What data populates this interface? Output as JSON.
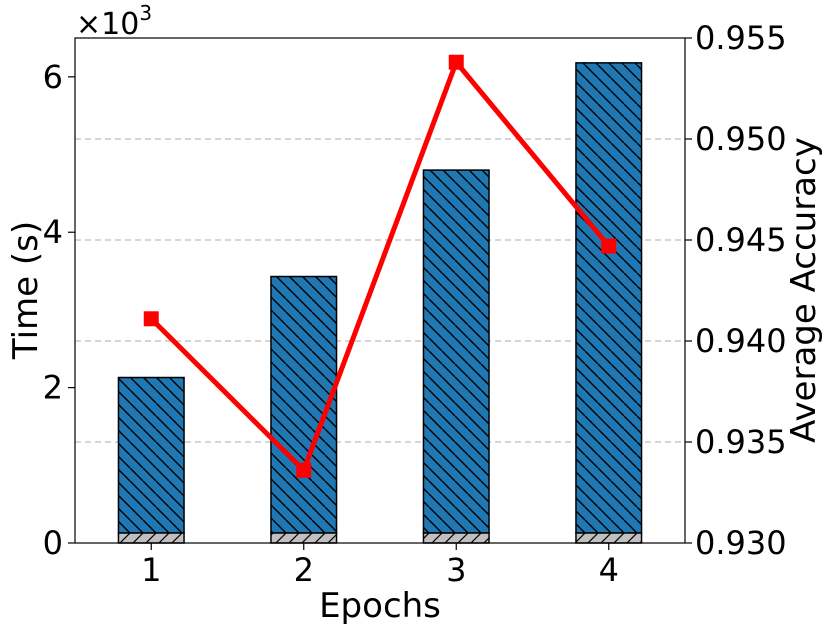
{
  "chart_data": {
    "type": "bar+line",
    "categories": [
      "1",
      "2",
      "3",
      "4"
    ],
    "xlabel": "Epochs",
    "ylabel_left": "Time (s)",
    "ylabel_right": "Average Accuracy",
    "left_axis": {
      "ylim": [
        0,
        6.5
      ],
      "ticks": [
        0,
        2,
        4,
        6
      ],
      "tick_labels": [
        "0",
        "2",
        "4",
        "6"
      ],
      "multiplier_base": "×10",
      "multiplier_exp": "3"
    },
    "right_axis": {
      "ylim": [
        0.93,
        0.955
      ],
      "ticks": [
        0.93,
        0.935,
        0.94,
        0.945,
        0.95,
        0.955
      ],
      "tick_labels": [
        "0.930",
        "0.935",
        "0.940",
        "0.945",
        "0.950",
        "0.955"
      ]
    },
    "series": [
      {
        "kind": "bar",
        "stack": "base",
        "color": "#c0c0c0",
        "hatch": "forward-slash",
        "values": [
          0.13,
          0.13,
          0.13,
          0.13
        ]
      },
      {
        "kind": "bar",
        "stack": "top",
        "color": "#1f77b4",
        "hatch": "back-slash",
        "values": [
          2.0,
          3.3,
          4.67,
          6.05
        ]
      },
      {
        "kind": "line",
        "axis": "right",
        "color": "#ff0000",
        "marker": "square",
        "values": [
          0.9411,
          0.9336,
          0.9538,
          0.9447
        ]
      }
    ],
    "grid": "horizontal-dashed",
    "legend": "none"
  }
}
